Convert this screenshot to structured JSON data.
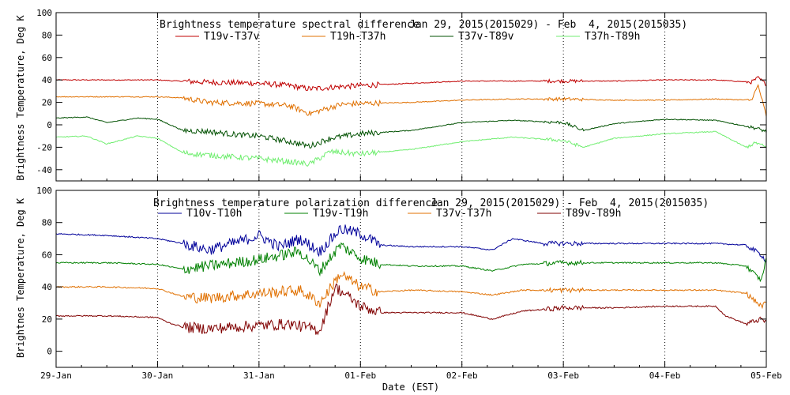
{
  "chart_data": [
    {
      "type": "line",
      "title": "Brightness temperature spectral difference",
      "date_range": "Jan 29, 2015(2015029) - Feb  4, 2015(2015035)",
      "ylabel": "Brightness Temperature, Deg K",
      "ylim": [
        -50,
        100
      ],
      "yticks": [
        -40,
        -20,
        0,
        20,
        40,
        60,
        80,
        100
      ],
      "xlim": [
        0,
        7
      ],
      "xticks": [
        0,
        1,
        2,
        3,
        4,
        5,
        6,
        7
      ],
      "grid": true,
      "legend": "top",
      "series": [
        {
          "name": "T19v-T37v",
          "color": "#c00000",
          "x": [
            0,
            0.5,
            1.0,
            1.2,
            1.5,
            2.0,
            2.3,
            2.5,
            2.8,
            3.0,
            3.5,
            4.0,
            4.5,
            5.0,
            5.5,
            6.0,
            6.5,
            6.85,
            6.92,
            7.0
          ],
          "y": [
            40,
            40,
            40,
            39,
            38,
            37,
            35,
            32,
            34,
            35,
            37,
            39,
            39,
            39,
            39,
            40,
            40,
            38,
            42,
            36
          ]
        },
        {
          "name": "T19h-T37h",
          "color": "#e07000",
          "x": [
            0,
            0.5,
            1.0,
            1.25,
            1.5,
            2.0,
            2.3,
            2.5,
            2.8,
            3.0,
            3.5,
            4.0,
            4.5,
            5.0,
            5.5,
            6.0,
            6.5,
            6.85,
            6.92,
            7.0
          ],
          "y": [
            25,
            25,
            25,
            24,
            20,
            19,
            17,
            10,
            18,
            19,
            20,
            22,
            23,
            23,
            22,
            22,
            23,
            22,
            35,
            8
          ]
        },
        {
          "name": "T37v-T89v",
          "color": "#005000",
          "x": [
            0,
            0.3,
            0.5,
            0.8,
            1.0,
            1.25,
            1.5,
            1.8,
            2.0,
            2.3,
            2.5,
            2.7,
            3.0,
            3.5,
            4.0,
            4.5,
            5.0,
            5.2,
            5.5,
            6.0,
            6.5,
            6.9,
            7.0
          ],
          "y": [
            6,
            7,
            2,
            6,
            5,
            -5,
            -6,
            -9,
            -10,
            -15,
            -19,
            -12,
            -8,
            -5,
            2,
            4,
            2,
            -5,
            1,
            5,
            4,
            -3,
            -6
          ]
        },
        {
          "name": "T37h-T89h",
          "color": "#70ee70",
          "x": [
            0,
            0.3,
            0.5,
            0.8,
            1.0,
            1.25,
            1.5,
            1.8,
            2.0,
            2.3,
            2.5,
            2.7,
            3.0,
            3.5,
            4.0,
            4.5,
            5.0,
            5.2,
            5.5,
            6.0,
            6.5,
            6.8,
            6.9,
            7.0
          ],
          "y": [
            -11,
            -10,
            -17,
            -10,
            -12,
            -25,
            -27,
            -29,
            -30,
            -33,
            -35,
            -24,
            -26,
            -22,
            -15,
            -11,
            -14,
            -20,
            -12,
            -8,
            -6,
            -20,
            -16,
            -20
          ]
        }
      ]
    },
    {
      "type": "line",
      "title": "Brightness temperature polarization difference",
      "date_range": "Jan 29, 2015(2015029) - Feb  4, 2015(2015035)",
      "ylabel": "Brightnes Temperature, Deg K",
      "xlabel": "Date (EST)",
      "ylim": [
        -10,
        100
      ],
      "yticks": [
        0,
        20,
        40,
        60,
        80,
        100
      ],
      "xlim": [
        0,
        7
      ],
      "xticks": [
        0,
        1,
        2,
        3,
        4,
        5,
        6,
        7
      ],
      "categories": [
        "29-Jan",
        "30-Jan",
        "31-Jan",
        "01-Feb",
        "02-Feb",
        "03-Feb",
        "04-Feb",
        "05-Feb"
      ],
      "grid": true,
      "legend": "top",
      "series": [
        {
          "name": "T10v-T10h",
          "color": "#00009a",
          "x": [
            0,
            0.5,
            1.0,
            1.25,
            1.5,
            1.8,
            2.0,
            2.2,
            2.4,
            2.6,
            2.8,
            3.0,
            3.2,
            3.5,
            4.0,
            4.3,
            4.5,
            4.8,
            5.0,
            5.5,
            6.0,
            6.5,
            6.8,
            6.95,
            7.0
          ],
          "y": [
            73,
            72,
            70,
            67,
            63,
            68,
            72,
            65,
            70,
            62,
            76,
            73,
            66,
            65,
            65,
            63,
            70,
            67,
            67,
            67,
            67,
            67,
            66,
            60,
            56
          ]
        },
        {
          "name": "T19v-T19h",
          "color": "#008000",
          "x": [
            0,
            0.5,
            1.0,
            1.25,
            1.5,
            2.0,
            2.4,
            2.6,
            2.8,
            3.0,
            3.2,
            3.5,
            4.0,
            4.3,
            4.6,
            5.0,
            5.5,
            6.0,
            6.5,
            6.8,
            6.95,
            7.0
          ],
          "y": [
            55,
            55,
            54,
            51,
            53,
            57,
            62,
            50,
            66,
            58,
            54,
            53,
            53,
            50,
            54,
            55,
            55,
            55,
            55,
            53,
            44,
            58
          ]
        },
        {
          "name": "T37v-T37h",
          "color": "#e07000",
          "x": [
            0,
            0.5,
            1.0,
            1.25,
            1.5,
            2.0,
            2.4,
            2.6,
            2.8,
            3.0,
            3.2,
            3.5,
            4.0,
            4.3,
            4.6,
            5.0,
            5.5,
            6.0,
            6.5,
            6.8,
            6.95,
            7.0
          ],
          "y": [
            40,
            40,
            39,
            34,
            33,
            36,
            38,
            30,
            48,
            40,
            37,
            38,
            37,
            35,
            38,
            38,
            38,
            38,
            38,
            36,
            28,
            30
          ]
        },
        {
          "name": "T89v-T89h",
          "color": "#800000",
          "x": [
            0,
            0.5,
            1.0,
            1.1,
            1.25,
            1.5,
            2.0,
            2.3,
            2.6,
            2.75,
            2.9,
            3.0,
            3.2,
            3.5,
            4.0,
            4.3,
            4.6,
            5.0,
            5.5,
            6.0,
            6.5,
            6.6,
            6.8,
            6.95,
            7.0
          ],
          "y": [
            22,
            22,
            21,
            18,
            15,
            14,
            16,
            17,
            13,
            40,
            33,
            28,
            24,
            24,
            24,
            20,
            25,
            27,
            27,
            28,
            28,
            22,
            17,
            20,
            18
          ]
        }
      ]
    }
  ]
}
